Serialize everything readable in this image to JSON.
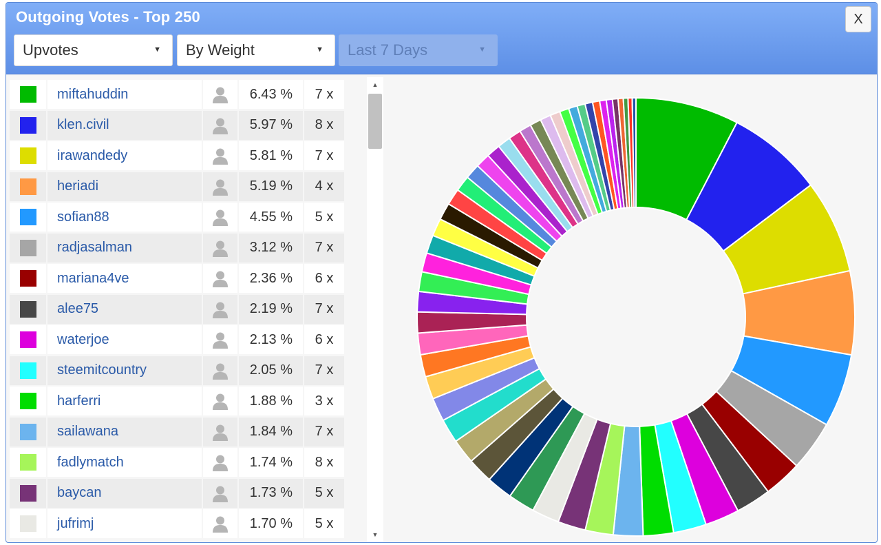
{
  "window": {
    "title": "Outgoing Votes - Top 250",
    "close_label": "X"
  },
  "filters": {
    "vote_type": "Upvotes",
    "sort": "By Weight",
    "period": "Last 7 Days"
  },
  "icons": {
    "user": "user-icon",
    "caret": "caret-down-icon"
  },
  "rows": [
    {
      "name": "miftahuddin",
      "pct": "6.43 %",
      "count": "7 x",
      "color": "#00bb00"
    },
    {
      "name": "klen.civil",
      "pct": "5.97 %",
      "count": "8 x",
      "color": "#2222ee"
    },
    {
      "name": "irawandedy",
      "pct": "5.81 %",
      "count": "7 x",
      "color": "#dddd00"
    },
    {
      "name": "heriadi",
      "pct": "5.19 %",
      "count": "4 x",
      "color": "#ff9944"
    },
    {
      "name": "sofian88",
      "pct": "4.55 %",
      "count": "5 x",
      "color": "#2299ff"
    },
    {
      "name": "radjasalman",
      "pct": "3.12 %",
      "count": "7 x",
      "color": "#a6a6a6"
    },
    {
      "name": "mariana4ve",
      "pct": "2.36 %",
      "count": "6 x",
      "color": "#990000"
    },
    {
      "name": "alee75",
      "pct": "2.19 %",
      "count": "7 x",
      "color": "#474747"
    },
    {
      "name": "waterjoe",
      "pct": "2.13 %",
      "count": "6 x",
      "color": "#dd00dd"
    },
    {
      "name": "steemitcountry",
      "pct": "2.05 %",
      "count": "7 x",
      "color": "#22ffff"
    },
    {
      "name": "harferri",
      "pct": "1.88 %",
      "count": "3 x",
      "color": "#00dd00"
    },
    {
      "name": "sailawana",
      "pct": "1.84 %",
      "count": "7 x",
      "color": "#6cb4ee"
    },
    {
      "name": "fadlymatch",
      "pct": "1.74 %",
      "count": "8 x",
      "color": "#a6f55a"
    },
    {
      "name": "baycan",
      "pct": "1.73 %",
      "count": "5 x",
      "color": "#773377"
    },
    {
      "name": "jufrimj",
      "pct": "1.70 %",
      "count": "5 x",
      "color": "#e9e9e4"
    }
  ],
  "chart_data": {
    "type": "pie",
    "labels": [
      "miftahuddin",
      "klen.civil",
      "irawandedy",
      "heriadi",
      "sofian88",
      "radjasalman",
      "mariana4ve",
      "alee75",
      "waterjoe",
      "steemitcountry",
      "harferri",
      "sailawana",
      "fadlymatch",
      "baycan",
      "jufrimj"
    ],
    "values": [
      6.43,
      5.97,
      5.81,
      5.19,
      4.55,
      3.12,
      2.36,
      2.19,
      2.13,
      2.05,
      1.88,
      1.84,
      1.74,
      1.73,
      1.7
    ],
    "colors": [
      "#00bb00",
      "#2222ee",
      "#dddd00",
      "#ff9944",
      "#2299ff",
      "#a6a6a6",
      "#990000",
      "#474747",
      "#dd00dd",
      "#22ffff",
      "#00dd00",
      "#6cb4ee",
      "#a6f55a",
      "#773377",
      "#e9e9e4"
    ],
    "unlabeled_values": [
      1.66,
      1.62,
      1.58,
      1.54,
      1.5,
      1.46,
      1.42,
      1.38,
      1.34,
      1.3,
      1.26,
      1.22,
      1.18,
      1.14,
      1.1,
      1.06,
      1.02,
      0.98,
      0.94,
      0.9,
      0.86,
      0.82,
      0.78,
      0.74,
      0.7,
      0.66,
      0.62,
      0.58,
      0.54,
      0.5,
      0.47,
      0.44,
      0.41,
      0.38,
      0.35,
      0.32,
      0.29,
      0.26,
      0.23
    ],
    "unlabeled_colors": [
      "#2e9955",
      "#003377",
      "#5c5539",
      "#b3a96a",
      "#22ddcc",
      "#8288e8",
      "#ffcc55",
      "#ff7722",
      "#ff66bb",
      "#aa2255",
      "#8822ee",
      "#33ee55",
      "#ff22dd",
      "#11aaaa",
      "#ffff44",
      "#2a1a00",
      "#ff4444",
      "#22ee77",
      "#5588dd",
      "#ee44ee",
      "#aa22cc",
      "#99ddee",
      "#dd3388",
      "#bb77cc",
      "#778855",
      "#ddbbee",
      "#eecccc",
      "#44ff44",
      "#44aadd",
      "#55cc88",
      "#3344aa",
      "#ff5522",
      "#dd22ee",
      "#bb22ee",
      "#773366",
      "#ee6633",
      "#449944",
      "#ff3322",
      "#2255aa"
    ],
    "inner_radius_ratio": 0.5,
    "start_angle": "top, clockwise"
  }
}
